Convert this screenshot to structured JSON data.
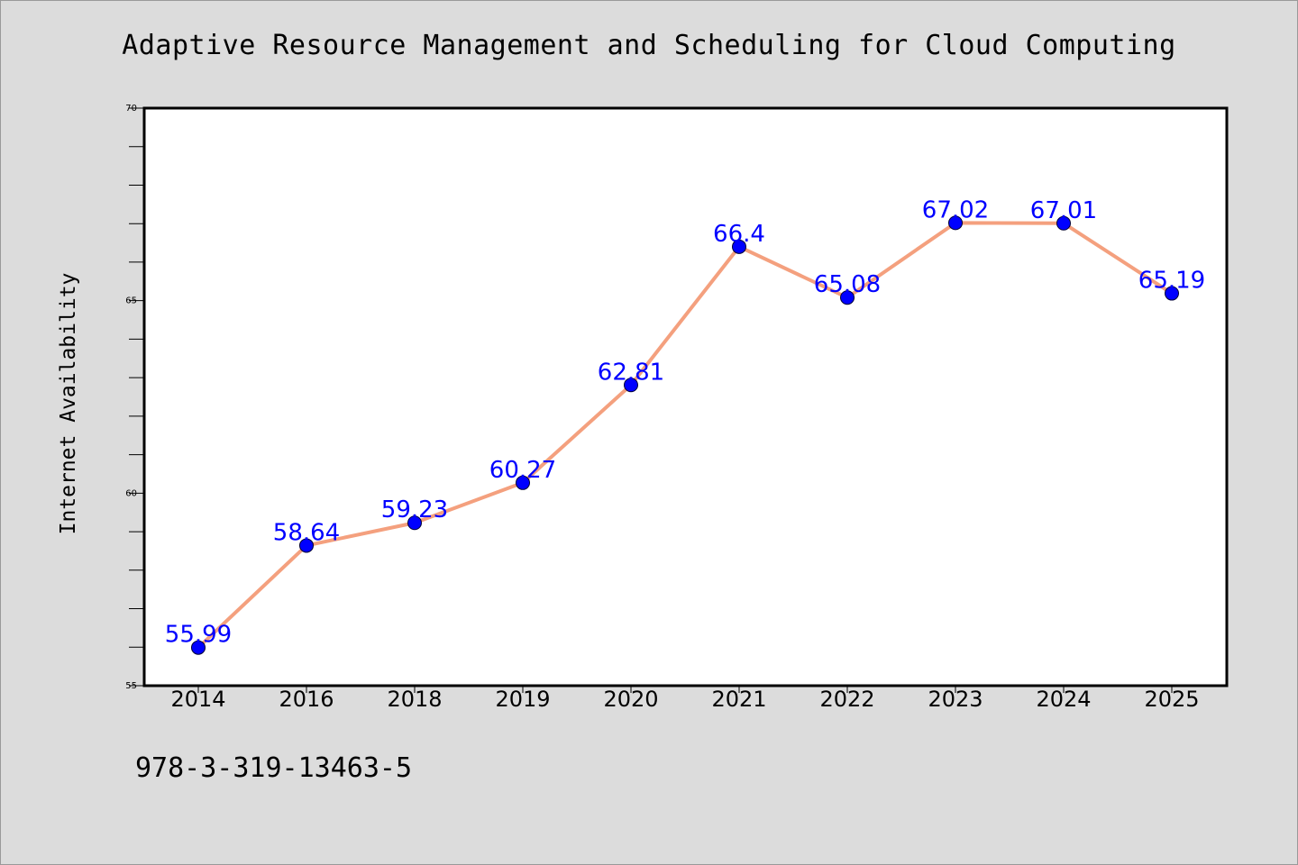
{
  "chart_data": {
    "type": "line",
    "title": "Adaptive Resource Management and Scheduling for Cloud Computing",
    "xlabel": "",
    "ylabel": "Internet Availability",
    "categories": [
      "2014",
      "2016",
      "2018",
      "2019",
      "2020",
      "2021",
      "2022",
      "2023",
      "2024",
      "2025"
    ],
    "values": [
      55.99,
      58.64,
      59.23,
      60.27,
      62.81,
      66.4,
      65.08,
      67.02,
      67.01,
      65.19
    ],
    "data_labels": [
      "55.99",
      "58.64",
      "59.23",
      "60.27",
      "62.81",
      "66.4",
      "65.08",
      "67.02",
      "67.01",
      "65.19"
    ],
    "ylim": [
      55,
      70
    ],
    "y_ticks": [
      "55",
      "60",
      "65",
      "70"
    ],
    "y_minor_step": 1,
    "grid": false,
    "legend": "none",
    "line_color": "#f4a07e",
    "marker_color": "#0000ff",
    "label_color": "#0000ff"
  },
  "footer_text": "978-3-319-13463-5"
}
